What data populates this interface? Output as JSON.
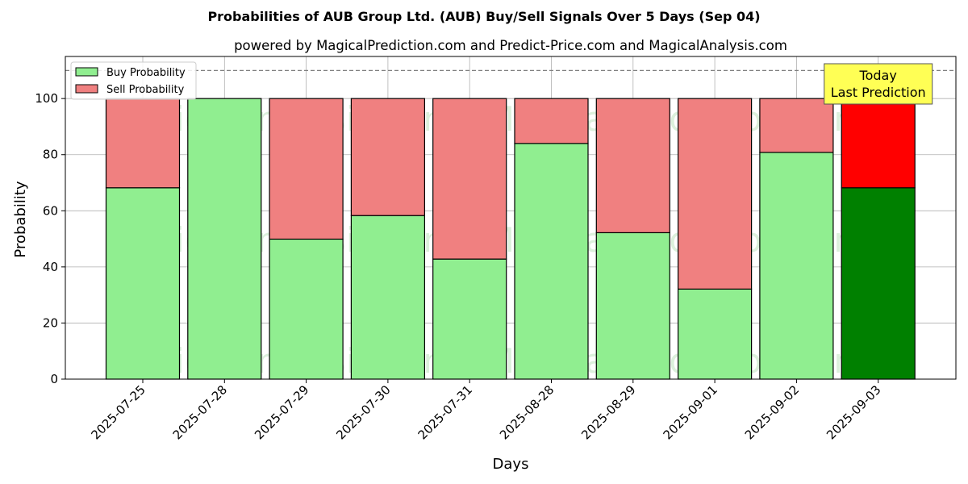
{
  "chart_data": {
    "type": "bar",
    "stacked": true,
    "title": "Probabilities of AUB Group Ltd. (AUB) Buy/Sell Signals Over 5 Days (Sep 04)",
    "subtitle": "powered by MagicalPrediction.com and Predict-Price.com and MagicalAnalysis.com",
    "xlabel": "Days",
    "ylabel": "Probability",
    "ylim": [
      0,
      115
    ],
    "yticks": [
      0,
      20,
      40,
      60,
      80,
      100
    ],
    "reference_line": 110,
    "grid": true,
    "legend_position": "top-left",
    "categories": [
      "2025-07-25",
      "2025-07-28",
      "2025-07-29",
      "2025-07-30",
      "2025-07-31",
      "2025-08-28",
      "2025-08-29",
      "2025-09-01",
      "2025-09-02",
      "2025-09-03"
    ],
    "series": [
      {
        "name": "Buy Probability",
        "color": "#90ee90",
        "highlight_color": "#008000",
        "values": [
          68.2,
          100,
          49.9,
          58.3,
          42.8,
          84.0,
          52.2,
          32.1,
          80.8,
          68.2
        ]
      },
      {
        "name": "Sell Probability",
        "color": "#f08080",
        "highlight_color": "#ff0000",
        "values": [
          31.8,
          0,
          50.1,
          41.7,
          57.2,
          16.0,
          47.8,
          67.9,
          19.2,
          31.8
        ]
      }
    ],
    "highlight_index": 9,
    "annotation": {
      "lines": [
        "Today",
        "Last Prediction"
      ],
      "color": "#ffff55"
    },
    "watermarks": [
      "MagicalAnalysis.com",
      "MagicalPrediction.com"
    ]
  }
}
